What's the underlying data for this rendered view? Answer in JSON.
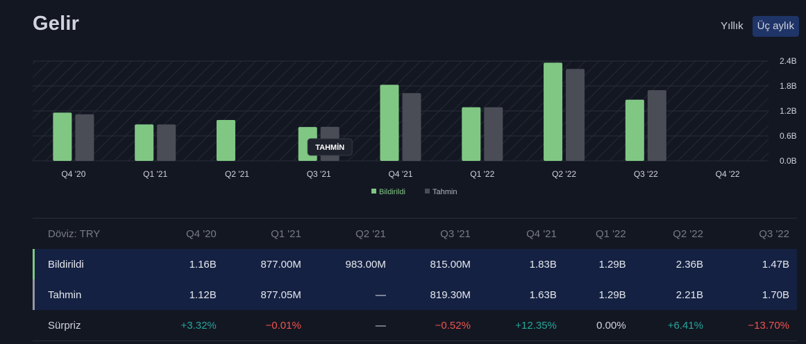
{
  "header": {
    "title": "Gelir",
    "period_options": [
      {
        "label": "Yıllık",
        "active": false
      },
      {
        "label": "Üç aylık",
        "active": true
      }
    ]
  },
  "colors": {
    "reported": "#81c784",
    "estimate": "#4a4c56",
    "grid": "#2a2e39",
    "axis_text": "#d1d4dc"
  },
  "chart_data": {
    "type": "bar",
    "categories": [
      "Q4 '20",
      "Q1 '21",
      "Q2 '21",
      "Q3 '21",
      "Q4 '21",
      "Q1 '22",
      "Q2 '22",
      "Q3 '22",
      "Q4 '22"
    ],
    "series": [
      {
        "name": "Bildirildi",
        "color": "#81c784",
        "values": [
          1.16,
          0.877,
          0.983,
          0.815,
          1.83,
          1.29,
          2.36,
          1.47,
          null
        ]
      },
      {
        "name": "Tahmin",
        "color": "#4a4c56",
        "values": [
          1.12,
          0.87705,
          null,
          0.8193,
          1.63,
          1.29,
          2.21,
          1.7,
          null
        ]
      }
    ],
    "unit": "B",
    "y_ticks": [
      "0.0B",
      "0.6B",
      "1.2B",
      "1.8B",
      "2.4B"
    ],
    "ylim": [
      0,
      2.4
    ],
    "grid": true,
    "legend_position": "bottom-center",
    "tooltip_label": "TAHMİN"
  },
  "table": {
    "header_label": "Döviz: TRY",
    "columns": [
      "Q4 '20",
      "Q1 '21",
      "Q2 '21",
      "Q3 '21",
      "Q4 '21",
      "Q1 '22",
      "Q2 '22",
      "Q3 '22"
    ],
    "rows": [
      {
        "label": "Bildirildi",
        "values": [
          "1.16B",
          "877.00M",
          "983.00M",
          "815.00M",
          "1.83B",
          "1.29B",
          "2.36B",
          "1.47B"
        ]
      },
      {
        "label": "Tahmin",
        "values": [
          "1.12B",
          "877.05M",
          "—",
          "819.30M",
          "1.63B",
          "1.29B",
          "2.21B",
          "1.70B"
        ]
      },
      {
        "label": "Sürpriz",
        "values": [
          "+3.32%",
          "−0.01%",
          "—",
          "−0.52%",
          "+12.35%",
          "0.00%",
          "+6.41%",
          "−13.70%"
        ]
      }
    ]
  }
}
